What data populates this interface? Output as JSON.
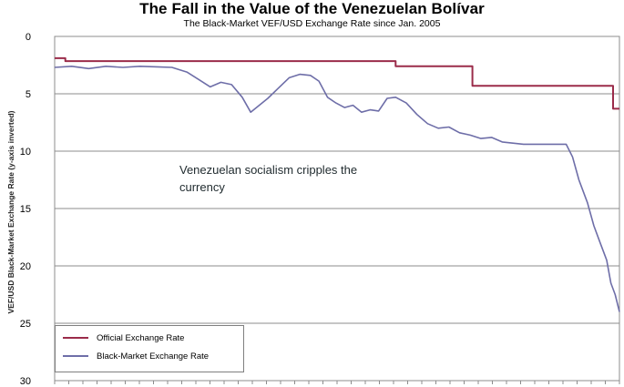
{
  "chart_data": {
    "type": "line",
    "title": "The Fall in the Value of the Venezuelan Bolívar",
    "subtitle": "The Black-Market VEF/USD Exchange Rate since Jan. 2005",
    "ylabel": "VEF/USD Black-Market Exchange Rate (y-axis inverted)",
    "xlabel": "",
    "y_inverted": true,
    "ylim": [
      0,
      30
    ],
    "yticks": [
      "0",
      "5",
      "10",
      "15",
      "20",
      "25",
      "30"
    ],
    "grid": "horizontal",
    "legend_position": "bottom-left",
    "annotation": "Venezuelan socialism cripples the currency",
    "series": [
      {
        "name": "Official Exchange Rate",
        "color": "#9b2c4a",
        "points": [
          [
            0,
            1.9
          ],
          [
            0.5,
            1.9
          ],
          [
            0.5,
            2.15
          ],
          [
            16,
            2.15
          ],
          [
            16,
            2.6
          ],
          [
            19.6,
            2.6
          ],
          [
            19.6,
            4.3
          ],
          [
            26.2,
            4.3
          ],
          [
            26.2,
            6.3
          ],
          [
            26.5,
            6.3
          ]
        ]
      },
      {
        "name": "Black-Market Exchange Rate",
        "color": "#6e6ea8",
        "points": [
          [
            0,
            2.7
          ],
          [
            0.8,
            2.6
          ],
          [
            1.6,
            2.8
          ],
          [
            2.4,
            2.6
          ],
          [
            3.2,
            2.7
          ],
          [
            4,
            2.6
          ],
          [
            4.8,
            2.65
          ],
          [
            5.5,
            2.7
          ],
          [
            6.2,
            3.1
          ],
          [
            6.8,
            3.8
          ],
          [
            7.3,
            4.4
          ],
          [
            7.8,
            4.0
          ],
          [
            8.3,
            4.2
          ],
          [
            8.8,
            5.3
          ],
          [
            9.2,
            6.6
          ],
          [
            9.6,
            6.0
          ],
          [
            10.0,
            5.4
          ],
          [
            10.5,
            4.5
          ],
          [
            11.0,
            3.6
          ],
          [
            11.5,
            3.3
          ],
          [
            12.0,
            3.4
          ],
          [
            12.4,
            3.9
          ],
          [
            12.8,
            5.3
          ],
          [
            13.2,
            5.8
          ],
          [
            13.6,
            6.2
          ],
          [
            14.0,
            6.0
          ],
          [
            14.4,
            6.6
          ],
          [
            14.8,
            6.4
          ],
          [
            15.2,
            6.5
          ],
          [
            15.6,
            5.4
          ],
          [
            16.0,
            5.3
          ],
          [
            16.5,
            5.8
          ],
          [
            17.0,
            6.8
          ],
          [
            17.5,
            7.6
          ],
          [
            18.0,
            8.0
          ],
          [
            18.5,
            7.9
          ],
          [
            19.0,
            8.4
          ],
          [
            19.5,
            8.6
          ],
          [
            20.0,
            8.9
          ],
          [
            20.5,
            8.8
          ],
          [
            21.0,
            9.2
          ],
          [
            21.5,
            9.3
          ],
          [
            22.0,
            9.4
          ],
          [
            22.5,
            9.4
          ],
          [
            23.0,
            9.4
          ],
          [
            23.5,
            9.4
          ],
          [
            24.0,
            9.4
          ],
          [
            24.3,
            10.5
          ],
          [
            24.6,
            12.5
          ],
          [
            25.0,
            14.5
          ],
          [
            25.3,
            16.5
          ],
          [
            25.6,
            18.0
          ],
          [
            25.9,
            19.5
          ],
          [
            26.1,
            21.5
          ],
          [
            26.3,
            22.5
          ],
          [
            26.5,
            24.0
          ]
        ]
      }
    ]
  }
}
